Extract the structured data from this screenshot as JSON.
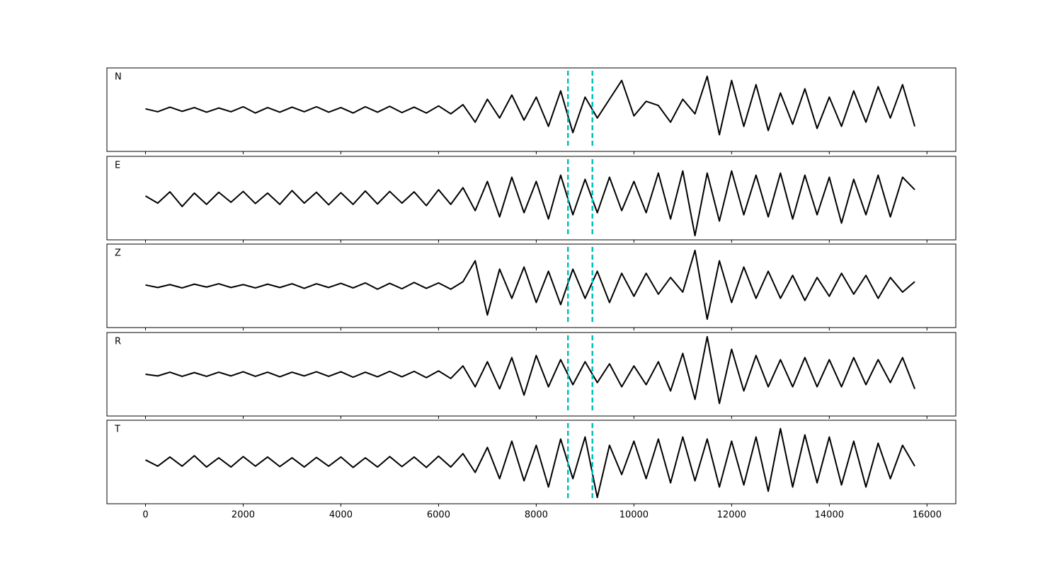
{
  "chart_data": {
    "type": "line",
    "x": [
      0,
      250,
      500,
      750,
      1000,
      1250,
      1500,
      1750,
      2000,
      2250,
      2500,
      2750,
      3000,
      3250,
      3500,
      3750,
      4000,
      4250,
      4500,
      4750,
      5000,
      5250,
      5500,
      5750,
      6000,
      6250,
      6500,
      6750,
      7000,
      7250,
      7500,
      7750,
      8000,
      8250,
      8500,
      8750,
      9000,
      9250,
      9500,
      9750,
      10000,
      10250,
      10500,
      10750,
      11000,
      11250,
      11500,
      11750,
      12000,
      12250,
      12500,
      12750,
      13000,
      13250,
      13500,
      13750,
      14000,
      14250,
      14500,
      14750,
      15000,
      15250,
      15500,
      15750
    ],
    "xlim": [
      -790,
      16590
    ],
    "xticks": [
      0,
      2000,
      4000,
      6000,
      8000,
      10000,
      12000,
      14000,
      16000
    ],
    "ylim": [
      -1,
      1
    ],
    "color": "#000000",
    "vline_color": "#00bfbf",
    "vlines": [
      8650,
      9150
    ],
    "series": [
      {
        "name": "N",
        "values": [
          0.02,
          -0.05,
          0.06,
          -0.04,
          0.05,
          -0.06,
          0.04,
          -0.05,
          0.07,
          -0.08,
          0.05,
          -0.06,
          0.06,
          -0.05,
          0.07,
          -0.06,
          0.05,
          -0.08,
          0.07,
          -0.06,
          0.08,
          -0.07,
          0.06,
          -0.08,
          0.09,
          -0.1,
          0.12,
          -0.3,
          0.25,
          -0.2,
          0.35,
          -0.25,
          0.3,
          -0.4,
          0.45,
          -0.55,
          0.3,
          -0.2,
          0.25,
          0.7,
          -0.15,
          0.2,
          0.1,
          -0.3,
          0.25,
          -0.1,
          0.8,
          -0.6,
          0.7,
          -0.4,
          0.6,
          -0.5,
          0.4,
          -0.35,
          0.5,
          -0.45,
          0.3,
          -0.4,
          0.45,
          -0.3,
          0.55,
          -0.2,
          0.6,
          -0.4
        ]
      },
      {
        "name": "E",
        "values": [
          0.05,
          -0.12,
          0.15,
          -0.2,
          0.12,
          -0.15,
          0.14,
          -0.1,
          0.16,
          -0.13,
          0.12,
          -0.15,
          0.18,
          -0.12,
          0.14,
          -0.16,
          0.13,
          -0.15,
          0.17,
          -0.14,
          0.16,
          -0.12,
          0.15,
          -0.18,
          0.2,
          -0.15,
          0.25,
          -0.3,
          0.4,
          -0.45,
          0.5,
          -0.35,
          0.4,
          -0.5,
          0.55,
          -0.4,
          0.45,
          -0.35,
          0.5,
          -0.3,
          0.4,
          -0.35,
          0.6,
          -0.5,
          0.65,
          -0.9,
          0.6,
          -0.55,
          0.65,
          -0.4,
          0.55,
          -0.45,
          0.6,
          -0.5,
          0.55,
          -0.4,
          0.5,
          -0.6,
          0.45,
          -0.4,
          0.55,
          -0.45,
          0.5,
          0.2
        ]
      },
      {
        "name": "Z",
        "values": [
          0.02,
          -0.04,
          0.03,
          -0.05,
          0.04,
          -0.03,
          0.05,
          -0.04,
          0.03,
          -0.05,
          0.04,
          -0.04,
          0.05,
          -0.06,
          0.05,
          -0.04,
          0.06,
          -0.05,
          0.07,
          -0.08,
          0.06,
          -0.07,
          0.08,
          -0.06,
          0.07,
          -0.08,
          0.1,
          0.6,
          -0.7,
          0.4,
          -0.3,
          0.45,
          -0.4,
          0.35,
          -0.45,
          0.4,
          -0.3,
          0.35,
          -0.4,
          0.3,
          -0.25,
          0.3,
          -0.2,
          0.2,
          -0.15,
          0.85,
          -0.8,
          0.6,
          -0.4,
          0.45,
          -0.3,
          0.35,
          -0.3,
          0.25,
          -0.35,
          0.2,
          -0.25,
          0.3,
          -0.2,
          0.25,
          -0.3,
          0.2,
          -0.15,
          0.1
        ]
      },
      {
        "name": "R",
        "values": [
          0.0,
          -0.04,
          0.05,
          -0.05,
          0.04,
          -0.05,
          0.05,
          -0.04,
          0.06,
          -0.05,
          0.05,
          -0.06,
          0.05,
          -0.04,
          0.06,
          -0.05,
          0.06,
          -0.07,
          0.05,
          -0.06,
          0.07,
          -0.06,
          0.07,
          -0.08,
          0.08,
          -0.1,
          0.2,
          -0.3,
          0.3,
          -0.35,
          0.4,
          -0.5,
          0.45,
          -0.3,
          0.35,
          -0.25,
          0.3,
          -0.2,
          0.25,
          -0.3,
          0.2,
          -0.25,
          0.3,
          -0.4,
          0.5,
          -0.6,
          0.9,
          -0.7,
          0.6,
          -0.4,
          0.45,
          -0.3,
          0.35,
          -0.3,
          0.4,
          -0.3,
          0.35,
          -0.3,
          0.4,
          -0.25,
          0.35,
          -0.2,
          0.4,
          -0.35
        ]
      },
      {
        "name": "T",
        "values": [
          0.05,
          -0.1,
          0.12,
          -0.1,
          0.15,
          -0.12,
          0.1,
          -0.12,
          0.13,
          -0.1,
          0.12,
          -0.11,
          0.1,
          -0.12,
          0.11,
          -0.1,
          0.12,
          -0.13,
          0.1,
          -0.12,
          0.13,
          -0.11,
          0.12,
          -0.13,
          0.14,
          -0.12,
          0.2,
          -0.25,
          0.35,
          -0.4,
          0.5,
          -0.45,
          0.4,
          -0.6,
          0.55,
          -0.4,
          0.6,
          -0.85,
          0.4,
          -0.3,
          0.5,
          -0.4,
          0.55,
          -0.5,
          0.6,
          -0.45,
          0.55,
          -0.6,
          0.5,
          -0.55,
          0.6,
          -0.7,
          0.8,
          -0.6,
          0.65,
          -0.5,
          0.6,
          -0.55,
          0.5,
          -0.6,
          0.45,
          -0.4,
          0.4,
          -0.1
        ]
      }
    ]
  }
}
